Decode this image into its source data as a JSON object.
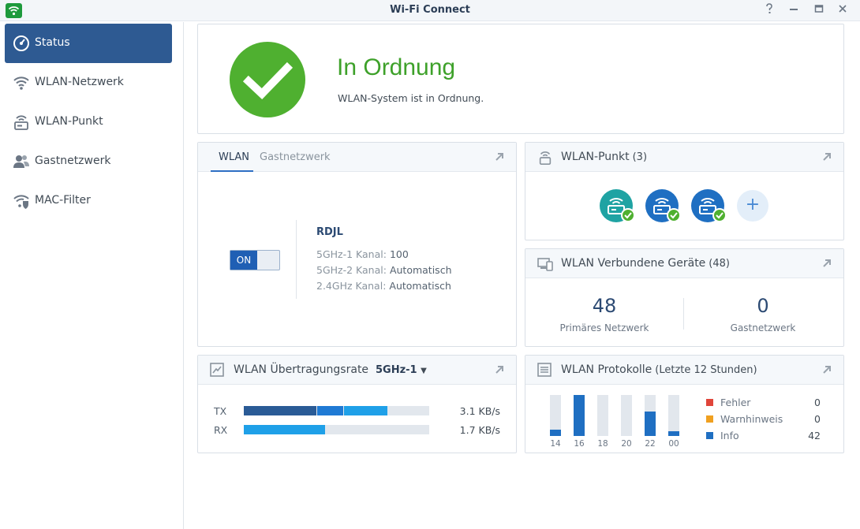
{
  "window": {
    "title": "Wi-Fi Connect",
    "controls": [
      "help-icon",
      "minimize-icon",
      "maximize-icon",
      "close-icon"
    ]
  },
  "sidebar": {
    "items": [
      {
        "label": "Status",
        "icon": "dashboard-icon",
        "active": true
      },
      {
        "label": "WLAN-Netzwerk",
        "icon": "wifi-icon"
      },
      {
        "label": "WLAN-Punkt",
        "icon": "access-point-icon"
      },
      {
        "label": "Gastnetzwerk",
        "icon": "guest-users-icon"
      },
      {
        "label": "MAC-Filter",
        "icon": "wifi-shield-icon"
      }
    ]
  },
  "status": {
    "headline": "In Ordnung",
    "message": "WLAN-System ist in Ordnung.",
    "color": "#4fb030"
  },
  "wlan_panel": {
    "tabs": [
      "WLAN",
      "Gastnetzwerk"
    ],
    "active_tab": "WLAN",
    "toggle_label": "ON",
    "ssid": "RDJL",
    "channels": [
      {
        "key": "5GHz-1 Kanal:",
        "value": "100"
      },
      {
        "key": "5GHz-2 Kanal:",
        "value": "Automatisch"
      },
      {
        "key": "2.4GHz Kanal:",
        "value": "Automatisch"
      }
    ]
  },
  "ap_panel": {
    "title": "WLAN-Punkt",
    "count": "(3)",
    "points": [
      {
        "color": "#1fa3a3",
        "status": "ok"
      },
      {
        "color": "#1f6fc2",
        "status": "ok"
      },
      {
        "color": "#1f6fc2",
        "status": "ok"
      }
    ],
    "add_label": "+"
  },
  "devices_panel": {
    "title": "WLAN Verbundene Geräte",
    "count": "(48)",
    "primary_value": "48",
    "primary_label": "Primäres Netzwerk",
    "guest_value": "0",
    "guest_label": "Gastnetzwerk"
  },
  "rate_panel": {
    "title": "WLAN Übertragungsrate",
    "band": "5GHz-1",
    "rows": [
      {
        "label": "TX",
        "value": "3.1 KB/s"
      },
      {
        "label": "RX",
        "value": "1.7 KB/s"
      }
    ]
  },
  "log_panel": {
    "title": "WLAN Protokolle",
    "subtitle": "(Letzte 12 Stunden)",
    "hours": [
      "14",
      "16",
      "18",
      "20",
      "22",
      "00"
    ],
    "info_levels": [
      0.15,
      1.0,
      0,
      0,
      0.6,
      0.12
    ],
    "legend": [
      {
        "label": "Fehler",
        "value": "0",
        "color": "#e0453a"
      },
      {
        "label": "Warnhinweis",
        "value": "0",
        "color": "#f0a020"
      },
      {
        "label": "Info",
        "value": "42",
        "color": "#1f6fc2"
      }
    ]
  }
}
